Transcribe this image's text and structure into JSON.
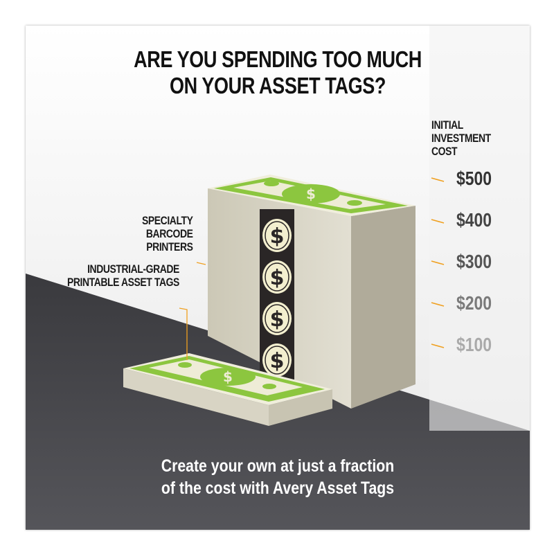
{
  "title": {
    "line1": "ARE YOU SPENDING TOO MUCH",
    "line2": "ON YOUR ASSET TAGS?"
  },
  "axis_label": {
    "line1": "INITIAL",
    "line2": "INVESTMENT",
    "line3": "COST"
  },
  "scale_values": [
    "$500",
    "$400",
    "$300",
    "$200",
    "$100"
  ],
  "scale_colors": [
    "#333333",
    "#444444",
    "#555555",
    "#7a7a7a",
    "#aaaaaa"
  ],
  "labels": {
    "printers": {
      "line1": "SPECIALTY",
      "line2": "BARCODE",
      "line3": "PRINTERS"
    },
    "tags": {
      "line1": "INDUSTRIAL-GRADE",
      "line2": "PRINTABLE ASSET TAGS"
    }
  },
  "footer": {
    "line1": "Create your own at just a fraction",
    "line2": "of the cost with Avery Asset Tags"
  },
  "icons": {
    "bill": "dollar-bill-icon",
    "coin": "dollar-coin-icon"
  },
  "colors": {
    "accent": "#f0a020",
    "bill_green": "#8cc63f",
    "floor": "#3c3c40",
    "paper": "#dcd8c8"
  }
}
